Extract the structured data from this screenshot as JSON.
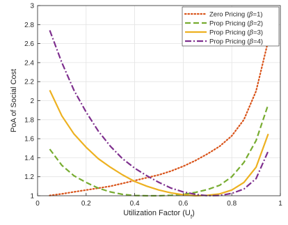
{
  "chart_data": {
    "type": "line",
    "xlabel": "Utilization Factor (U",
    "xlabel_sub": "f",
    "xlabel_close": ")",
    "ylabel": "PoA of Social Cost",
    "xlim": [
      0,
      1
    ],
    "ylim": [
      1,
      3
    ],
    "xticks": [
      0,
      0.2,
      0.4,
      0.6,
      0.8,
      1
    ],
    "xtick_labels": [
      "0",
      "0.2",
      "0.4",
      "0.6",
      "0.8",
      "1"
    ],
    "yticks": [
      1,
      1.2,
      1.4,
      1.6,
      1.8,
      2,
      2.2,
      2.4,
      2.6,
      2.8,
      3
    ],
    "ytick_labels": [
      "1",
      "1.2",
      "1.4",
      "1.6",
      "1.8",
      "2",
      "2.2",
      "2.4",
      "2.6",
      "2.8",
      "3"
    ],
    "grid": true,
    "legend_position": "top-right",
    "series": [
      {
        "name": "Zero Pricing (β=1)",
        "legend_prefix": "Zero Pricing (",
        "legend_beta": "β",
        "legend_suffix": "=1)",
        "color": "#d95319",
        "dash": "dotted",
        "x": [
          0.05,
          0.1,
          0.15,
          0.2,
          0.25,
          0.3,
          0.35,
          0.4,
          0.45,
          0.5,
          0.55,
          0.6,
          0.65,
          0.7,
          0.75,
          0.8,
          0.85,
          0.9,
          0.95
        ],
        "y": [
          1.003,
          1.02,
          1.04,
          1.06,
          1.08,
          1.1,
          1.13,
          1.16,
          1.19,
          1.22,
          1.26,
          1.31,
          1.37,
          1.44,
          1.52,
          1.63,
          1.8,
          2.1,
          2.63
        ]
      },
      {
        "name": "Prop Pricing (β=2)",
        "legend_prefix": "Prop Pricing (",
        "legend_beta": "β",
        "legend_suffix": "=2)",
        "color": "#77ac30",
        "dash": "dashed",
        "x": [
          0.05,
          0.1,
          0.15,
          0.2,
          0.25,
          0.3,
          0.35,
          0.4,
          0.45,
          0.5,
          0.55,
          0.6,
          0.65,
          0.7,
          0.75,
          0.8,
          0.85,
          0.9,
          0.95
        ],
        "y": [
          1.49,
          1.32,
          1.21,
          1.14,
          1.08,
          1.04,
          1.015,
          1.003,
          1.0,
          1.0,
          1.005,
          1.015,
          1.035,
          1.065,
          1.11,
          1.2,
          1.35,
          1.58,
          1.96
        ]
      },
      {
        "name": "Prop Pricing (β=3)",
        "legend_prefix": "Prop Pricing (",
        "legend_beta": "β",
        "legend_suffix": "=3)",
        "color": "#edb120",
        "dash": "solid",
        "x": [
          0.05,
          0.1,
          0.15,
          0.2,
          0.25,
          0.3,
          0.35,
          0.4,
          0.45,
          0.5,
          0.55,
          0.6,
          0.65,
          0.7,
          0.75,
          0.8,
          0.85,
          0.9,
          0.95
        ],
        "y": [
          2.11,
          1.84,
          1.65,
          1.51,
          1.39,
          1.3,
          1.22,
          1.15,
          1.1,
          1.06,
          1.03,
          1.01,
          1.0,
          1.005,
          1.02,
          1.06,
          1.14,
          1.3,
          1.65
        ]
      },
      {
        "name": "Prop Pricing (β=4)",
        "legend_prefix": "Prop Pricing (",
        "legend_beta": "β",
        "legend_suffix": "=4)",
        "color": "#7e2f8e",
        "dash": "dashdot",
        "x": [
          0.05,
          0.1,
          0.15,
          0.2,
          0.25,
          0.3,
          0.35,
          0.4,
          0.45,
          0.5,
          0.55,
          0.6,
          0.65,
          0.7,
          0.75,
          0.8,
          0.85,
          0.9,
          0.95
        ],
        "y": [
          2.74,
          2.4,
          2.11,
          1.88,
          1.68,
          1.52,
          1.39,
          1.29,
          1.21,
          1.14,
          1.08,
          1.04,
          1.015,
          1.0,
          1.003,
          1.025,
          1.07,
          1.18,
          1.47
        ]
      }
    ]
  }
}
